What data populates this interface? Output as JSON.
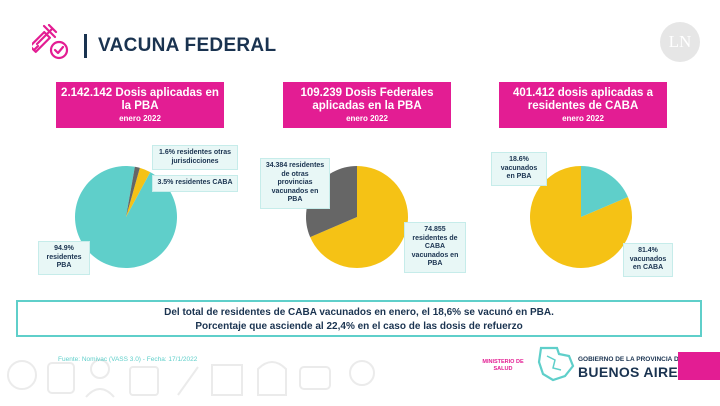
{
  "header": {
    "title": "VACUNA FEDERAL",
    "logo_text": "LN"
  },
  "boxes": [
    {
      "headline": "2.142.142 Dosis aplicadas en la PBA",
      "date": "enero 2022"
    },
    {
      "headline": "109.239 Dosis Federales aplicadas en la PBA",
      "date": "enero 2022"
    },
    {
      "headline": "401.412 dosis aplicadas a residentes de CABA",
      "date": "enero 2022"
    }
  ],
  "chart_data": [
    {
      "type": "pie",
      "title": "2.142.142 Dosis aplicadas en la PBA",
      "slices": [
        {
          "label": "94.9% residentes PBA",
          "value": 94.9,
          "color": "#5fcfca"
        },
        {
          "label": "3.5% residentes CABA",
          "value": 3.5,
          "color": "#f5c215"
        },
        {
          "label": "1.6% residentes otras jurisdicciones",
          "value": 1.6,
          "color": "#666666"
        }
      ]
    },
    {
      "type": "pie",
      "title": "109.239 Dosis Federales aplicadas en la PBA",
      "slices": [
        {
          "label": "74.855 residentes de CABA vacunados en PBA",
          "value": 74855,
          "color": "#f5c215"
        },
        {
          "label": "34.384 residentes de otras provincias vacunados en PBA",
          "value": 34384,
          "color": "#666666"
        }
      ]
    },
    {
      "type": "pie",
      "title": "401.412 dosis aplicadas a residentes de CABA",
      "slices": [
        {
          "label": "81.4% vacunados en CABA",
          "value": 81.4,
          "color": "#f5c215"
        },
        {
          "label": "18.6% vacunados en PBA",
          "value": 18.6,
          "color": "#5fcfca"
        }
      ]
    }
  ],
  "labels": {
    "c1_otras": "1.6% residentes otras jurisdicciones",
    "c1_caba": "3.5% residentes CABA",
    "c1_pba": "94.9% residentes PBA",
    "c2_otras": "34.384 residentes de otras provincias vacunados en PBA",
    "c2_caba": "74.855 residentes de CABA vacunados en PBA",
    "c3_pba": "18.6% vacunados en PBA",
    "c3_caba": "81.4% vacunados en CABA"
  },
  "banner": {
    "line1": "Del total de residentes de CABA vacunados en enero, el  18,6% se vacunó en PBA.",
    "line2": "Porcentaje que asciende al 22,4% en el caso de las dosis de refuerzo"
  },
  "footer": {
    "source": "Fuente: Nomivac (VASS 3.0) - Fecha: 17/1/2022",
    "ministerio": "MINISTERIO DE SALUD",
    "gov_line1": "GOBIERNO DE LA PROVINCIA DE",
    "gov_line2": "BUENOS AIRES"
  },
  "colors": {
    "magenta": "#e31d93",
    "teal": "#5fcfca",
    "yellow": "#f5c215",
    "gray": "#666666",
    "navy": "#1a3350"
  }
}
